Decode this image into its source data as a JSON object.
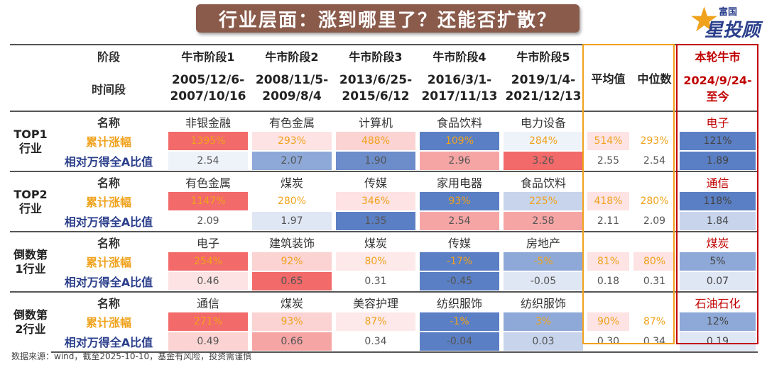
{
  "title": "行业层面：涨到哪里了？还能否扩散？",
  "logo": {
    "small": "富国",
    "big": "星投顾",
    "star": "★"
  },
  "header": {
    "stage_label": "阶段",
    "period_label": "时间段",
    "stages": [
      "牛市阶段1",
      "牛市阶段2",
      "牛市阶段3",
      "牛市阶段4",
      "牛市阶段5"
    ],
    "dates": [
      [
        "2005/12/6-",
        "2007/10/16"
      ],
      [
        "2008/11/5-",
        "2009/8/4"
      ],
      [
        "2013/6/25-",
        "2015/6/12"
      ],
      [
        "2016/3/1-",
        "2017/11/13"
      ],
      [
        "2019/1/4-",
        "2021/12/13"
      ]
    ],
    "avg": "平均值",
    "median": "中位数",
    "current_stage": "本轮牛市",
    "current_date": [
      "2024/9/24-",
      "至今"
    ]
  },
  "row_labels": {
    "name": "名称",
    "gain": "累计涨幅",
    "rel": "相对万得全A比值"
  },
  "groups": [
    {
      "label": [
        "TOP1",
        "行业"
      ],
      "names": [
        "非银金融",
        "有色金属",
        "计算机",
        "食品饮料",
        "电力设备"
      ],
      "gains": [
        "1395%",
        "293%",
        "488%",
        "109%",
        "284%"
      ],
      "gain_colors": [
        "#f26a6a",
        "#fde3e3",
        "#fbd3d3",
        "#5b7fc4",
        "#eef2f9"
      ],
      "rels": [
        "2.54",
        "2.07",
        "1.90",
        "2.96",
        "3.26"
      ],
      "rel_colors": [
        "#eef2f9",
        "#8ea9d8",
        "#6c8cca",
        "#f6a5a5",
        "#f26a6a"
      ],
      "avg_gain": "514%",
      "med_gain": "293%",
      "avg_rel": "2.55",
      "med_rel": "2.54",
      "cur_name": "电子",
      "cur_gain": "121%",
      "cur_rel": "1.89",
      "avg_gain_color": "#fde3e3",
      "med_gain_color": "#ffffff",
      "cur_gain_color": "#5b7fc4",
      "cur_rel_color": "#5b7fc4"
    },
    {
      "label": [
        "TOP2",
        "行业"
      ],
      "names": [
        "有色金属",
        "煤炭",
        "传媒",
        "家用电器",
        "食品饮料"
      ],
      "gains": [
        "1147%",
        "280%",
        "346%",
        "93%",
        "225%"
      ],
      "gain_colors": [
        "#f26a6a",
        "#ffffff",
        "#fde3e3",
        "#5b7fc4",
        "#c7d4ec"
      ],
      "rels": [
        "2.09",
        "1.97",
        "1.35",
        "2.54",
        "2.58"
      ],
      "rel_colors": [
        "#ffffff",
        "#dfe6f4",
        "#5b7fc4",
        "#f6a5a5",
        "#f6a5a5"
      ],
      "avg_gain": "418%",
      "med_gain": "280%",
      "avg_rel": "2.11",
      "med_rel": "2.09",
      "cur_name": "通信",
      "cur_gain": "118%",
      "cur_rel": "1.84",
      "avg_gain_color": "#fde3e3",
      "med_gain_color": "#ffffff",
      "cur_gain_color": "#5b7fc4",
      "cur_rel_color": "#c7d4ec"
    },
    {
      "label": [
        "倒数第",
        "1行业"
      ],
      "names": [
        "电子",
        "建筑装饰",
        "煤炭",
        "传媒",
        "房地产"
      ],
      "gains": [
        "254%",
        "92%",
        "80%",
        "-17%",
        "-5%"
      ],
      "gain_colors": [
        "#f26a6a",
        "#fbd3d3",
        "#fde9e9",
        "#5b7fc4",
        "#8ea9d8"
      ],
      "rels": [
        "0.46",
        "0.65",
        "0.31",
        "-0.45",
        "-0.05"
      ],
      "rel_colors": [
        "#fde3e3",
        "#f26a6a",
        "#ffffff",
        "#5b7fc4",
        "#dfe6f4"
      ],
      "avg_gain": "81%",
      "med_gain": "80%",
      "avg_rel": "0.18",
      "med_rel": "0.31",
      "cur_name": "煤炭",
      "cur_gain": "5%",
      "cur_rel": "0.07",
      "avg_gain_color": "#fde3e3",
      "med_gain_color": "#fde3e3",
      "cur_gain_color": "#8ea9d8",
      "cur_rel_color": "#dfe6f4"
    },
    {
      "label": [
        "倒数第",
        "2行业"
      ],
      "names": [
        "通信",
        "煤炭",
        "美容护理",
        "纺织服饰",
        "纺织服饰"
      ],
      "gains": [
        "271%",
        "93%",
        "87%",
        "-1%",
        "3%"
      ],
      "gain_colors": [
        "#f26a6a",
        "#fbd3d3",
        "#fde9e9",
        "#5b7fc4",
        "#8ea9d8"
      ],
      "rels": [
        "0.49",
        "0.66",
        "0.34",
        "-0.04",
        "0.03"
      ],
      "rel_colors": [
        "#fbd3d3",
        "#f6a5a5",
        "#ffffff",
        "#5b7fc4",
        "#c7d4ec"
      ],
      "avg_gain": "90%",
      "med_gain": "87%",
      "avg_rel": "0.30",
      "med_rel": "0.34",
      "cur_name": "石油石化",
      "cur_gain": "12%",
      "cur_rel": "0.19",
      "avg_gain_color": "#fde3e3",
      "med_gain_color": "#ffffff",
      "cur_gain_color": "#8ea9d8",
      "cur_rel_color": "#dfe6f4"
    }
  ],
  "footer": "数据来源：wind，截至2025-10-10，基金有风险，投资需谨慎"
}
